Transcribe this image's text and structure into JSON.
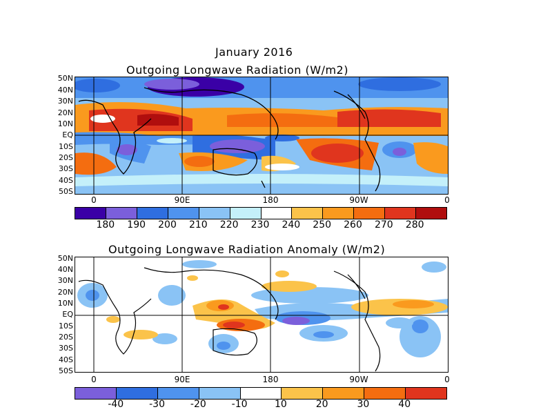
{
  "figure": {
    "title_line1": "January 2016",
    "top_title": "Outgoing Longwave Radiation (W/m2)",
    "bottom_title": "Outgoing Longwave Radiation Anomaly (W/m2)"
  },
  "lat_labels": [
    "50N",
    "40N",
    "30N",
    "20N",
    "10N",
    "EQ",
    "10S",
    "20S",
    "30S",
    "40S",
    "50S"
  ],
  "lon_labels": [
    "0",
    "90E",
    "180",
    "90W",
    "0"
  ],
  "top_colorbar": {
    "colors": [
      "#3a00a6",
      "#7b5fdb",
      "#2f6ee0",
      "#4f93ee",
      "#8ac3f5",
      "#c4f0fa",
      "#ffffff",
      "#fbc34a",
      "#fa9a1e",
      "#f46d10",
      "#e0351e",
      "#b00e0e"
    ],
    "labels": [
      "180",
      "190",
      "200",
      "210",
      "220",
      "230",
      "240",
      "250",
      "260",
      "270",
      "280"
    ]
  },
  "bottom_colorbar": {
    "colors": [
      "#7b5fdb",
      "#2f6ee0",
      "#4f93ee",
      "#8ac3f5",
      "#ffffff",
      "#fbc34a",
      "#fa9a1e",
      "#f46d10",
      "#e0351e"
    ],
    "labels": [
      "-40",
      "-30",
      "-20",
      "-10",
      "10",
      "20",
      "30",
      "40"
    ]
  }
}
